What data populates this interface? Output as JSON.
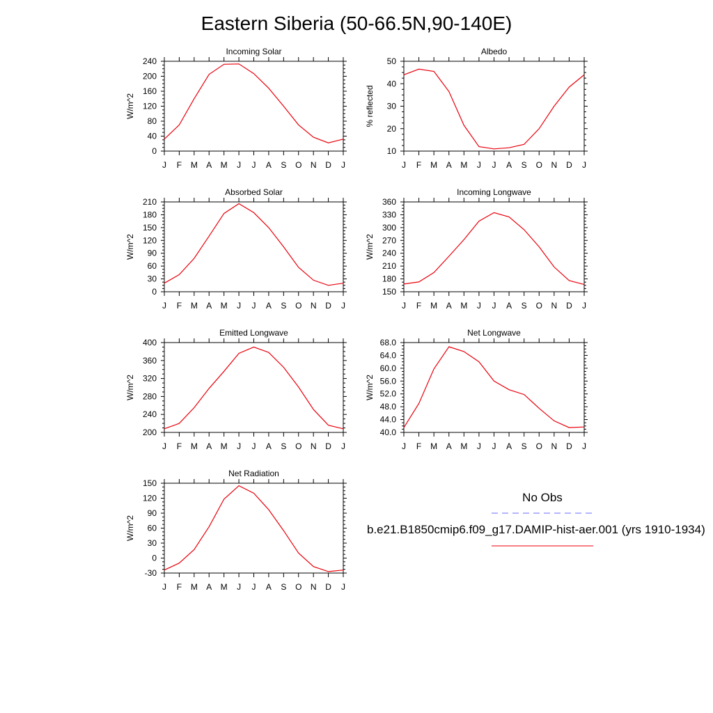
{
  "title": "Eastern Siberia (50-66.5N,90-140E)",
  "colors": {
    "model_line": "#e8000b",
    "obs_line": "#6a6aff",
    "axis": "#000000"
  },
  "legend": {
    "obs_label": "No Obs",
    "model_label": "b.e21.B1850cmip6.f09_g17.DAMIP-hist-aer.001 (yrs 1910-1934)"
  },
  "chart_data": [
    {
      "type": "line",
      "title": "Incoming Solar",
      "ylabel": "W/m^2",
      "categories": [
        "J",
        "F",
        "M",
        "A",
        "M",
        "J",
        "J",
        "A",
        "S",
        "O",
        "N",
        "D",
        "J"
      ],
      "ylim": [
        0,
        240
      ],
      "yticks": [
        "0",
        "40",
        "80",
        "120",
        "160",
        "200",
        "240"
      ],
      "series": [
        {
          "values": [
            32,
            70,
            140,
            205,
            232,
            233,
            207,
            168,
            120,
            70,
            37,
            22,
            32
          ]
        }
      ]
    },
    {
      "type": "line",
      "title": "Albedo",
      "ylabel": "% reflected",
      "categories": [
        "J",
        "F",
        "M",
        "A",
        "M",
        "J",
        "J",
        "A",
        "S",
        "O",
        "N",
        "D",
        "J"
      ],
      "ylim": [
        10,
        50
      ],
      "yticks": [
        "10",
        "20",
        "30",
        "40",
        "50"
      ],
      "series": [
        {
          "values": [
            44,
            46.5,
            45.5,
            36.5,
            21.5,
            12,
            11,
            11.5,
            13,
            20,
            30,
            38.5,
            44
          ]
        }
      ]
    },
    {
      "type": "line",
      "title": "Absorbed Solar",
      "ylabel": "W/m^2",
      "categories": [
        "J",
        "F",
        "M",
        "A",
        "M",
        "J",
        "J",
        "A",
        "S",
        "O",
        "N",
        "D",
        "J"
      ],
      "ylim": [
        0,
        210
      ],
      "yticks": [
        "0",
        "30",
        "60",
        "90",
        "120",
        "150",
        "180",
        "210"
      ],
      "series": [
        {
          "values": [
            20,
            40,
            78,
            130,
            183,
            206,
            185,
            150,
            105,
            57,
            27,
            15,
            20
          ]
        }
      ]
    },
    {
      "type": "line",
      "title": "Incoming Longwave",
      "ylabel": "W/m^2",
      "categories": [
        "J",
        "F",
        "M",
        "A",
        "M",
        "J",
        "J",
        "A",
        "S",
        "O",
        "N",
        "D",
        "J"
      ],
      "ylim": [
        150,
        360
      ],
      "yticks": [
        "150",
        "180",
        "210",
        "240",
        "270",
        "300",
        "330",
        "360"
      ],
      "series": [
        {
          "values": [
            168,
            173,
            195,
            233,
            272,
            315,
            335,
            325,
            295,
            255,
            208,
            176,
            167
          ]
        }
      ]
    },
    {
      "type": "line",
      "title": "Emitted Longwave",
      "ylabel": "W/m^2",
      "categories": [
        "J",
        "F",
        "M",
        "A",
        "M",
        "J",
        "J",
        "A",
        "S",
        "O",
        "N",
        "D",
        "J"
      ],
      "ylim": [
        200,
        400
      ],
      "yticks": [
        "200",
        "240",
        "280",
        "320",
        "360",
        "400"
      ],
      "series": [
        {
          "values": [
            208,
            220,
            255,
            298,
            336,
            376,
            390,
            378,
            345,
            301,
            251,
            216,
            208
          ]
        }
      ]
    },
    {
      "type": "line",
      "title": "Net Longwave",
      "ylabel": "W/m^2",
      "categories": [
        "J",
        "F",
        "M",
        "A",
        "M",
        "J",
        "J",
        "A",
        "S",
        "O",
        "N",
        "D",
        "J"
      ],
      "ylim": [
        40,
        68
      ],
      "yticks": [
        "40.0",
        "44.0",
        "48.0",
        "52.0",
        "56.0",
        "60.0",
        "64.0",
        "68.0"
      ],
      "series": [
        {
          "values": [
            41.5,
            49,
            59.8,
            66.7,
            65.2,
            62,
            56,
            53.3,
            51.8,
            47.5,
            43.6,
            41.5,
            41.7
          ]
        }
      ]
    },
    {
      "type": "line",
      "title": "Net Radiation",
      "ylabel": "W/m^2",
      "categories": [
        "J",
        "F",
        "M",
        "A",
        "M",
        "J",
        "J",
        "A",
        "S",
        "O",
        "N",
        "D",
        "J"
      ],
      "ylim": [
        -30,
        150
      ],
      "yticks": [
        "-30",
        "0",
        "30",
        "60",
        "90",
        "120",
        "150"
      ],
      "series": [
        {
          "values": [
            -24,
            -10,
            17,
            63,
            118,
            145,
            130,
            97,
            55,
            10,
            -17,
            -27,
            -24
          ]
        }
      ]
    }
  ]
}
